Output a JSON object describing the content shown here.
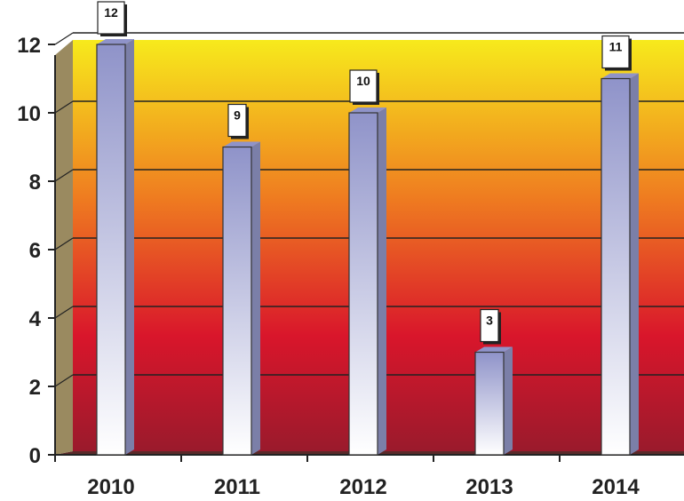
{
  "chart_data": {
    "type": "bar",
    "categories": [
      "2010",
      "2011",
      "2012",
      "2013",
      "2014"
    ],
    "values": [
      12,
      9,
      10,
      3,
      11
    ],
    "ylim": [
      0,
      12
    ],
    "yticks": [
      "0",
      "2",
      "4",
      "6",
      "8",
      "10",
      "12"
    ],
    "grid": true,
    "legend": "none",
    "data_labels": true,
    "colors": {
      "background_top": "#f7ea1c",
      "background_middle": "#ef7d20",
      "background_low": "#d9162b",
      "background_bottom": "#9a1a2c",
      "bar_top": "#8f93c9",
      "bar_bottom": "#ffffff",
      "bar_side": "#7b7fa8",
      "grid": "#222222"
    }
  }
}
